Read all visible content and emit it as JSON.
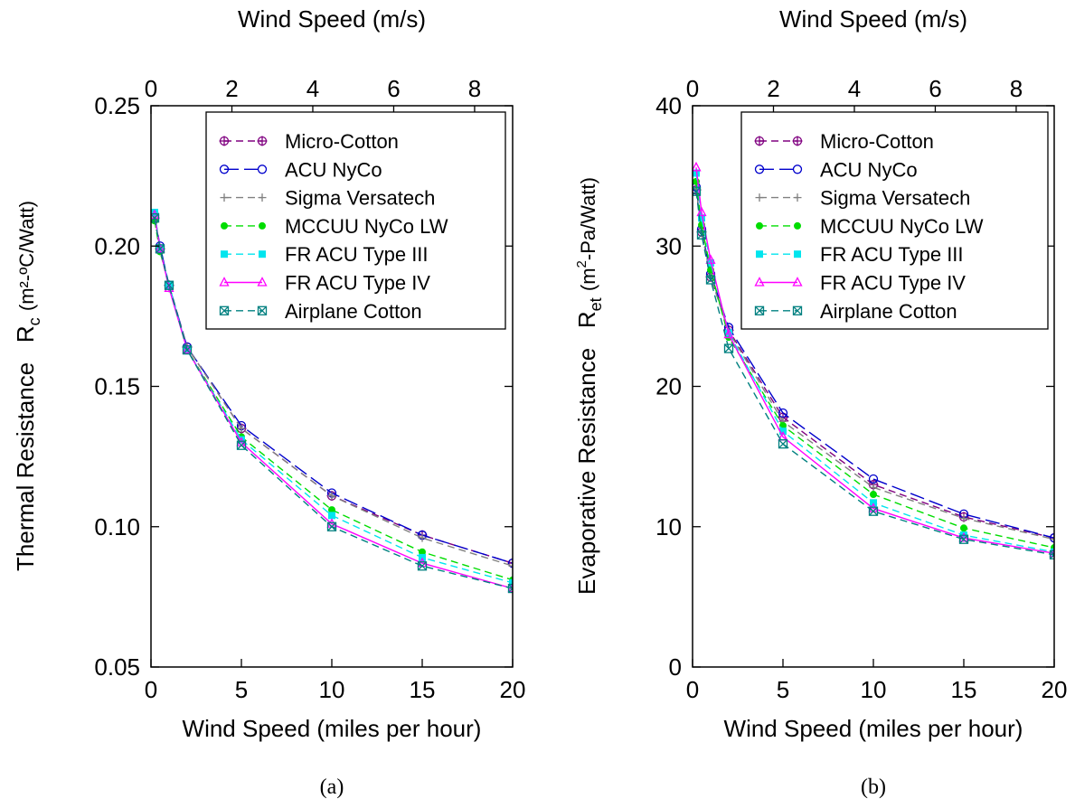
{
  "chart_data": [
    {
      "type": "line",
      "panel_label": "(a)",
      "xlabel": "Wind Speed (miles per hour)",
      "x2label": "Wind Speed (m/s)",
      "ylabel_main": "Thermal Resistance",
      "ylabel_symbol": "R",
      "ylabel_sub": "c",
      "ylabel_unit": "(m²-ºC/Watt)",
      "xlim": [
        0,
        20
      ],
      "ylim": [
        0.05,
        0.25
      ],
      "x2lim": [
        0,
        8.94
      ],
      "x_ticks": [
        0,
        5,
        10,
        15,
        20
      ],
      "x_tick_labels": [
        "0",
        "5",
        "10",
        "15",
        "20"
      ],
      "y_ticks": [
        0.05,
        0.1,
        0.15,
        0.2,
        0.25
      ],
      "y_tick_labels": [
        "0.05",
        "0.10",
        "0.15",
        "0.20",
        "0.25"
      ],
      "x2_ticks": [
        0,
        2,
        4,
        6,
        8
      ],
      "x2_tick_labels": [
        "0",
        "2",
        "4",
        "6",
        "8"
      ],
      "legend_position": "top-right",
      "grid": false,
      "x": [
        0.2,
        0.5,
        1,
        2,
        5,
        10,
        15,
        20
      ],
      "series": [
        {
          "name": "Micro-Cotton",
          "color": "#800080",
          "dash": "8,5",
          "marker": "circle-plus",
          "values": [
            0.21,
            0.199,
            0.186,
            0.164,
            0.135,
            0.111,
            0.097,
            0.087
          ]
        },
        {
          "name": "ACU NyCo",
          "color": "#0000cc",
          "dash": "16,6",
          "marker": "circle",
          "values": [
            0.211,
            0.2,
            0.186,
            0.164,
            0.136,
            0.112,
            0.097,
            0.087
          ]
        },
        {
          "name": "Sigma Versatech",
          "color": "#808080",
          "dash": "8,5",
          "marker": "plus",
          "values": [
            0.21,
            0.199,
            0.185,
            0.164,
            0.135,
            0.111,
            0.096,
            0.086
          ]
        },
        {
          "name": "MCCUU NyCo LW",
          "color": "#00dd00",
          "dash": "8,5",
          "marker": "dot",
          "values": [
            0.209,
            0.198,
            0.186,
            0.163,
            0.132,
            0.106,
            0.091,
            0.081
          ]
        },
        {
          "name": "FR ACU Type III",
          "color": "#00e5ee",
          "dash": "8,5",
          "marker": "square",
          "values": [
            0.212,
            0.199,
            0.186,
            0.163,
            0.131,
            0.104,
            0.089,
            0.08
          ]
        },
        {
          "name": "FR ACU Type IV",
          "color": "#ff00ff",
          "dash": "",
          "marker": "triangle",
          "values": [
            0.211,
            0.199,
            0.185,
            0.163,
            0.13,
            0.101,
            0.087,
            0.078
          ]
        },
        {
          "name": "Airplane Cotton",
          "color": "#008080",
          "dash": "8,5",
          "marker": "square-x",
          "values": [
            0.21,
            0.199,
            0.186,
            0.163,
            0.129,
            0.1,
            0.086,
            0.078
          ]
        }
      ]
    },
    {
      "type": "line",
      "panel_label": "(b)",
      "xlabel": "Wind Speed (miles per hour)",
      "x2label": "Wind Speed (m/s)",
      "ylabel_main": "Evaporative Resistance",
      "ylabel_symbol": "R",
      "ylabel_sub": "et",
      "ylabel_unit_pre": "(m",
      "ylabel_unit_sup": "2",
      "ylabel_unit_post": "-Pa/Watt)",
      "xlim": [
        0,
        20
      ],
      "ylim": [
        0,
        40
      ],
      "x2lim": [
        0,
        8.94
      ],
      "x_ticks": [
        0,
        5,
        10,
        15,
        20
      ],
      "x_tick_labels": [
        "0",
        "5",
        "10",
        "15",
        "20"
      ],
      "y_ticks": [
        0,
        10,
        20,
        30,
        40
      ],
      "y_tick_labels": [
        "0",
        "10",
        "20",
        "30",
        "40"
      ],
      "x2_ticks": [
        0,
        2,
        4,
        6,
        8
      ],
      "x2_tick_labels": [
        "0",
        "2",
        "4",
        "6",
        "8"
      ],
      "legend_position": "top-right",
      "grid": false,
      "x": [
        0.2,
        0.5,
        1,
        2,
        5,
        10,
        15,
        20
      ],
      "series": [
        {
          "name": "Micro-Cotton",
          "color": "#800080",
          "dash": "8,5",
          "marker": "circle-plus",
          "values": [
            34.0,
            31.0,
            27.8,
            24.0,
            17.8,
            13.0,
            10.7,
            9.2
          ]
        },
        {
          "name": "ACU NyCo",
          "color": "#0000cc",
          "dash": "16,6",
          "marker": "circle",
          "values": [
            34.2,
            31.2,
            28.0,
            24.2,
            18.1,
            13.4,
            10.9,
            9.2
          ]
        },
        {
          "name": "Sigma Versatech",
          "color": "#808080",
          "dash": "8,5",
          "marker": "plus",
          "values": [
            34.1,
            31.0,
            27.8,
            23.9,
            17.5,
            12.8,
            10.6,
            9.1
          ]
        },
        {
          "name": "MCCUU NyCo LW",
          "color": "#00dd00",
          "dash": "8,5",
          "marker": "dot",
          "values": [
            34.6,
            31.5,
            28.3,
            23.5,
            17.2,
            12.3,
            9.9,
            8.5
          ]
        },
        {
          "name": "FR ACU Type III",
          "color": "#00e5ee",
          "dash": "8,5",
          "marker": "square",
          "values": [
            35.2,
            32.0,
            28.8,
            23.8,
            16.8,
            11.7,
            9.4,
            8.2
          ]
        },
        {
          "name": "FR ACU Type IV",
          "color": "#ff00ff",
          "dash": "",
          "marker": "triangle",
          "values": [
            35.6,
            32.4,
            29.0,
            23.7,
            16.4,
            11.3,
            9.2,
            8.1
          ]
        },
        {
          "name": "Airplane Cotton",
          "color": "#008080",
          "dash": "8,5",
          "marker": "square-x",
          "values": [
            33.9,
            30.8,
            27.6,
            22.7,
            15.9,
            11.1,
            9.1,
            8.0
          ]
        }
      ]
    }
  ]
}
